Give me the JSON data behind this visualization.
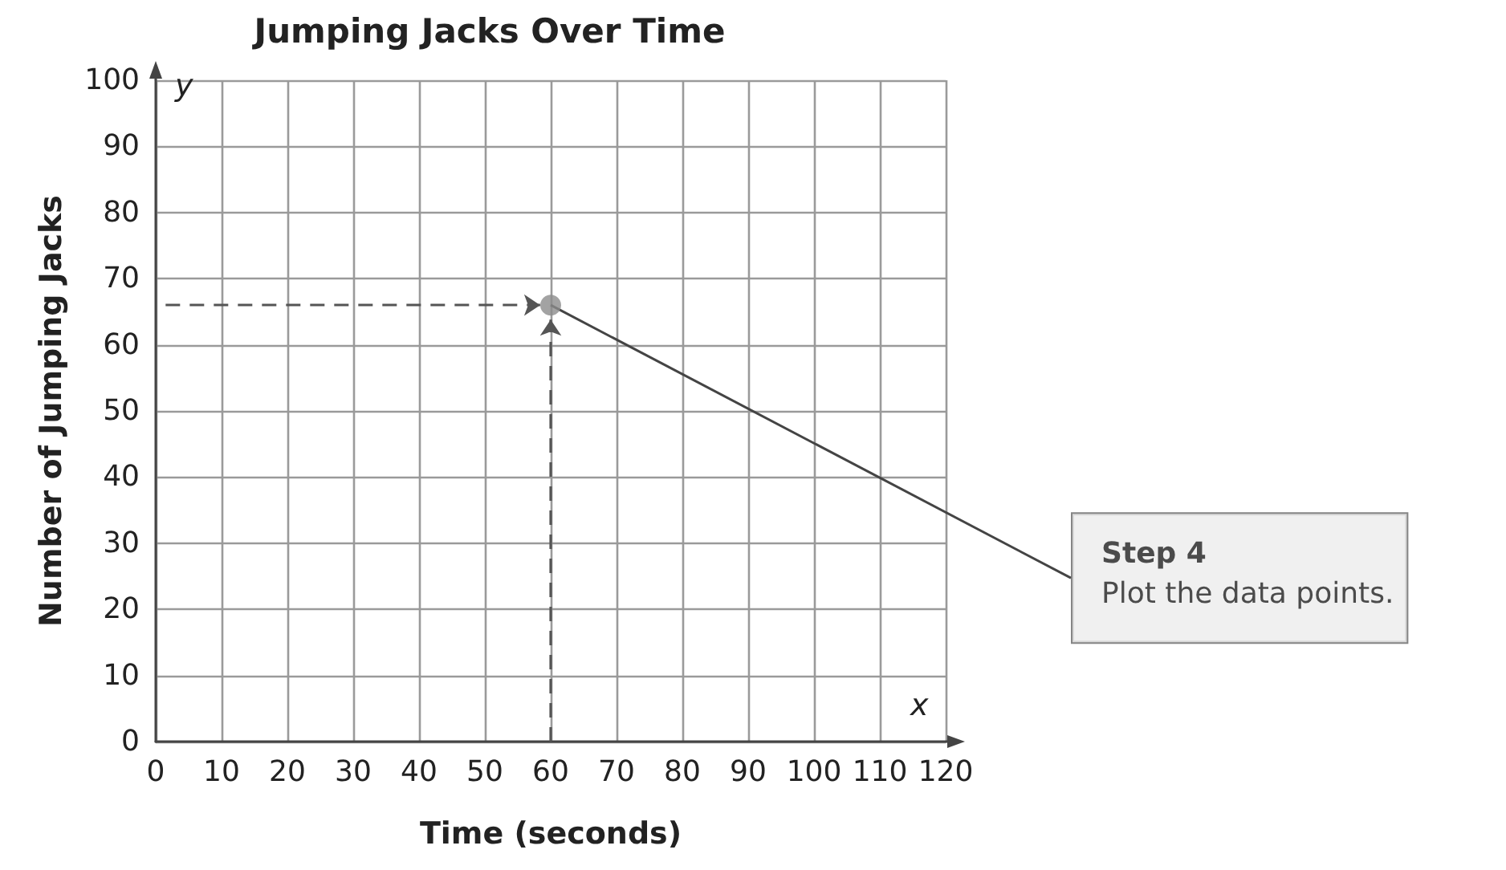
{
  "chart_data": {
    "type": "scatter",
    "title": "Jumping Jacks Over Time",
    "xlabel": "Time (seconds)",
    "ylabel": "Number of Jumping Jacks",
    "x": [
      60
    ],
    "values": [
      66
    ],
    "color": "#8c8c8c",
    "marker": "circle",
    "xlim": [
      0,
      120
    ],
    "xticks": [
      0,
      10,
      20,
      30,
      40,
      50,
      60,
      70,
      80,
      90,
      100,
      110,
      120
    ],
    "ylim": [
      0,
      100
    ],
    "yticks": [
      0,
      10,
      20,
      30,
      40,
      50,
      60,
      70,
      80,
      90,
      100
    ],
    "grid": true,
    "annotations": [
      {
        "text": "Step 4\nPlot the data points.",
        "x": 60,
        "y": 66
      },
      "y",
      "x"
    ]
  }
}
